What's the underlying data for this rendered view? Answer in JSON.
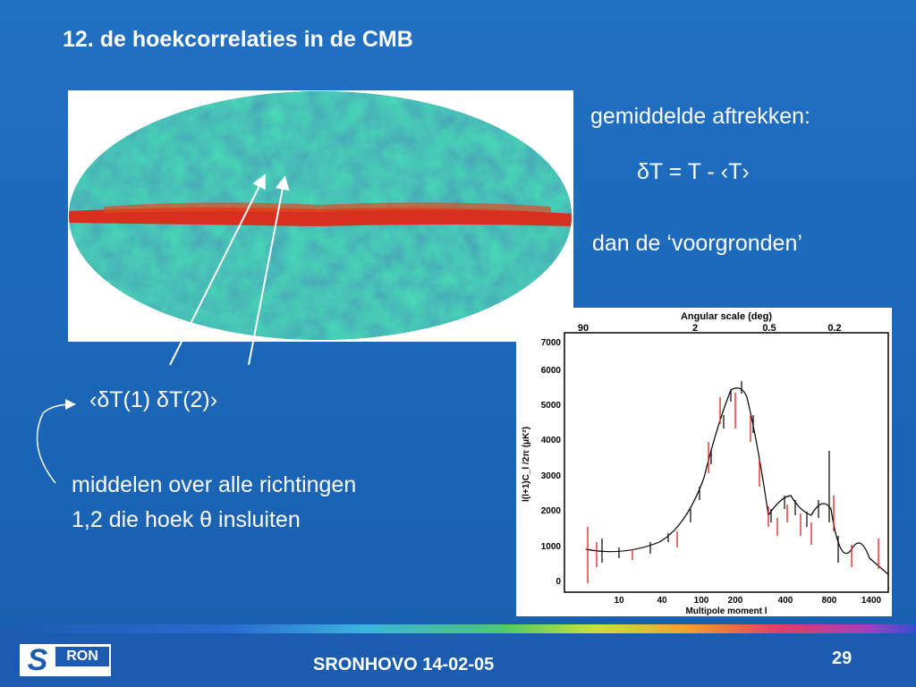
{
  "slide": {
    "title": "12. de hoekcorrelaties in de CMB",
    "text_mean": "gemiddelde aftrekken:",
    "text_formula": "δT = T - ‹T›",
    "text_foreground": "dan de ‘voorgronden’",
    "text_correlation": "‹δT(1) δT(2)›",
    "text_avg_line1": "middelen over alle richtingen",
    "text_avg_line2": "1,2 die hoek θ insluiten"
  },
  "plot": {
    "top_axis_title": "Angular scale (deg)",
    "top_ticks": [
      "90",
      "2",
      "0.5",
      "0.2"
    ],
    "y_ticks": [
      "0",
      "1000",
      "2000",
      "3000",
      "4000",
      "5000",
      "6000",
      "7000"
    ],
    "x_ticks": [
      "10",
      "40",
      "100",
      "200",
      "400",
      "800",
      "1400"
    ],
    "ylabel": "l(l+1)C_l /2π (μK²)",
    "xlabel": "Multipole moment l"
  },
  "footer": {
    "text": "SRONHOVO 14-02-05",
    "page": "29",
    "logo_s": "S",
    "logo_r": "RON"
  },
  "colors": {
    "background": "#1c66b8",
    "curve": "#000000",
    "error_bars_red": "#e02020",
    "map_band": "#d83020"
  }
}
